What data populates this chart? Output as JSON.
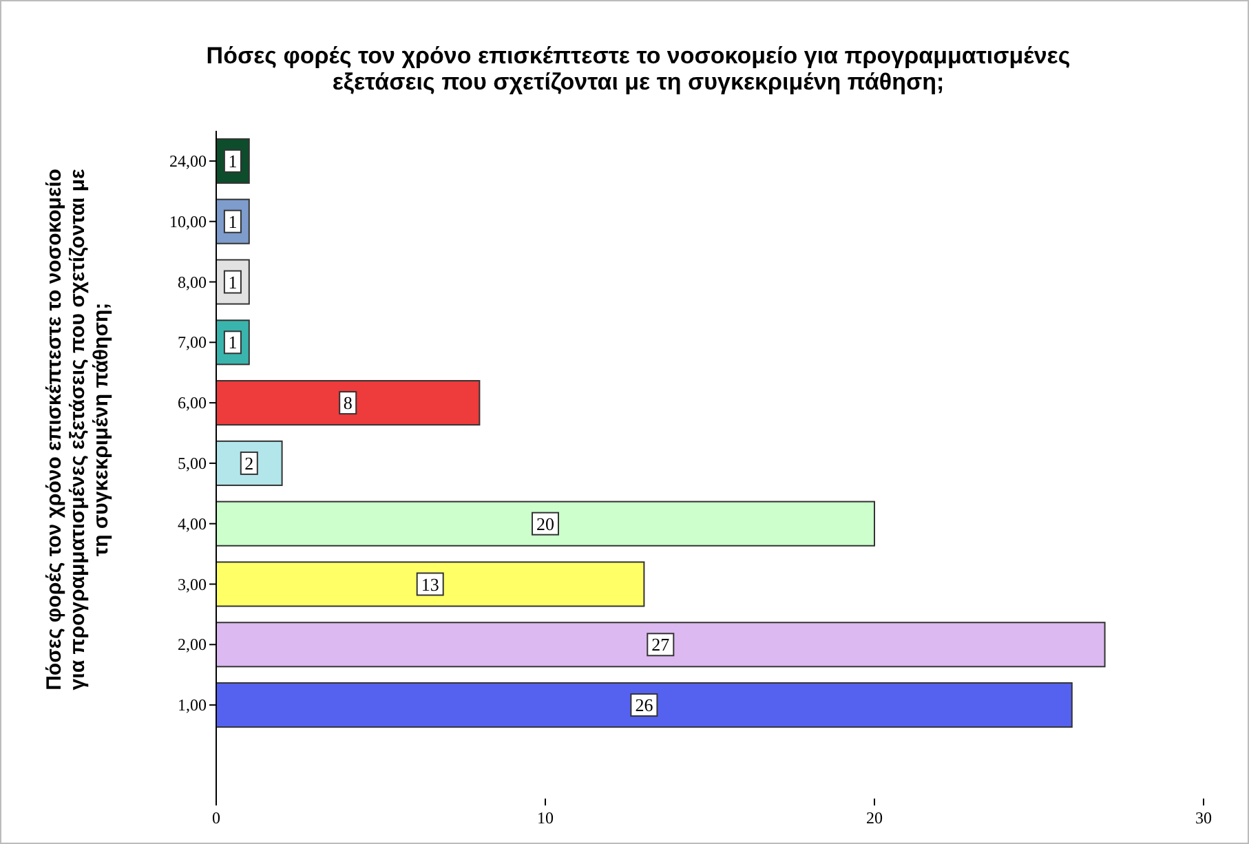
{
  "chart_data": {
    "type": "bar",
    "orientation": "horizontal",
    "title": "Πόσες φορές τον χρόνο επισκέπτεστε το νοσοκομείο για προγραμματισμένες\nεξετάσεις που σχετίζονται με τη συγκεκριμένη πάθηση;",
    "ylabel": "Πόσες φορές τον χρόνο επισκέπτεστε το νοσοκομείο\nγια προγραμματισμένες εξετάσεις που σχετίζονται με\nτη συγκεκριμένη πάθηση;",
    "categories": [
      "24,00",
      "10,00",
      "8,00",
      "7,00",
      "6,00",
      "5,00",
      "4,00",
      "3,00",
      "2,00",
      "1,00"
    ],
    "values": [
      1,
      1,
      1,
      1,
      8,
      2,
      20,
      13,
      27,
      26
    ],
    "colors": [
      "#0d4d2b",
      "#7e9ccc",
      "#e2e2e2",
      "#3ab5ad",
      "#ee3b3b",
      "#b2e6ea",
      "#ccffcc",
      "#ffff66",
      "#dcb9f0",
      "#5562f0"
    ],
    "xlim": [
      0,
      30
    ],
    "xticks": [
      0,
      10,
      20,
      30
    ],
    "data_labels": true
  }
}
